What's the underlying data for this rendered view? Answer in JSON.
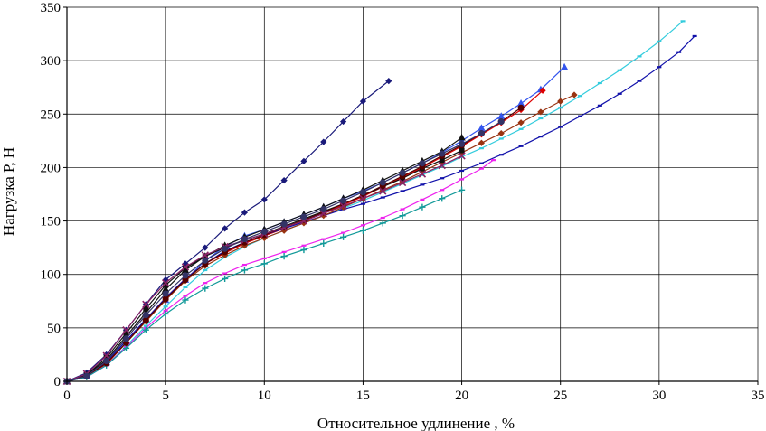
{
  "chart_data": {
    "type": "line",
    "title": "",
    "xlabel": "Относительное удлинение  , %",
    "ylabel": "Нагрузка Р, Н",
    "xlim": [
      0,
      35
    ],
    "ylim": [
      0,
      350
    ],
    "xticks": [
      "0",
      "5",
      "10",
      "15",
      "20",
      "25",
      "30",
      "35"
    ],
    "yticks": [
      "0",
      "50",
      "100",
      "150",
      "200",
      "250",
      "300",
      "350"
    ],
    "grid": true,
    "legend": "none",
    "series": [
      {
        "name": "series-1",
        "color": "#1a1a7a",
        "marker": "diamond",
        "x": [
          0,
          1,
          2,
          3,
          4,
          5,
          6,
          7,
          8,
          9,
          10,
          11,
          12,
          13,
          14,
          15,
          16.3
        ],
        "y": [
          0,
          8,
          25,
          48,
          72,
          95,
          110,
          125,
          143,
          158,
          170,
          188,
          206,
          224,
          243,
          262,
          281
        ]
      },
      {
        "name": "series-2",
        "color": "#3355ee",
        "marker": "triangle",
        "x": [
          0,
          1,
          2,
          3,
          4,
          5,
          6,
          7,
          8,
          9,
          10,
          11,
          12,
          13,
          14,
          15,
          16,
          17,
          18,
          19,
          20,
          21,
          22,
          23,
          24,
          25.2
        ],
        "y": [
          0,
          5,
          18,
          38,
          58,
          76,
          95,
          113,
          126,
          136,
          142,
          149,
          156,
          163,
          171,
          178,
          186,
          195,
          204,
          214,
          225,
          237,
          248,
          260,
          273,
          294
        ]
      },
      {
        "name": "series-3",
        "color": "#dd0000",
        "marker": "diamond",
        "x": [
          0,
          1,
          2,
          3,
          4,
          5,
          6,
          7,
          8,
          9,
          10,
          11,
          12,
          13,
          14,
          15,
          16,
          17,
          18,
          19,
          20,
          21,
          22,
          23,
          24.1
        ],
        "y": [
          0,
          4,
          16,
          36,
          58,
          78,
          96,
          110,
          120,
          129,
          136,
          143,
          150,
          157,
          165,
          173,
          182,
          191,
          200,
          210,
          220,
          231,
          242,
          254,
          272
        ]
      },
      {
        "name": "series-4",
        "color": "#33ccdd",
        "marker": "dash",
        "x": [
          0,
          1,
          2,
          3,
          4,
          5,
          6,
          7,
          8,
          9,
          10,
          11,
          12,
          13,
          14,
          15,
          16,
          17,
          18,
          19,
          20,
          21,
          22,
          23,
          24,
          25,
          26,
          27,
          28,
          29,
          30,
          31.2
        ],
        "y": [
          0,
          4,
          15,
          33,
          52,
          70,
          88,
          104,
          116,
          126,
          134,
          141,
          148,
          155,
          162,
          169,
          177,
          185,
          193,
          201,
          210,
          218,
          227,
          236,
          246,
          256,
          267,
          279,
          291,
          304,
          318,
          337
        ]
      },
      {
        "name": "series-5",
        "color": "#1111aa",
        "marker": "dash",
        "x": [
          0,
          1,
          2,
          3,
          4,
          5,
          6,
          7,
          8,
          9,
          10,
          11,
          12,
          13,
          14,
          15,
          16,
          17,
          18,
          19,
          20,
          21,
          22,
          23,
          24,
          25,
          26,
          27,
          28,
          29,
          30,
          31,
          31.8
        ],
        "y": [
          0,
          5,
          18,
          38,
          58,
          78,
          96,
          110,
          122,
          130,
          137,
          143,
          149,
          155,
          161,
          166,
          172,
          178,
          184,
          190,
          197,
          204,
          212,
          220,
          229,
          238,
          248,
          258,
          269,
          281,
          294,
          308,
          323
        ]
      },
      {
        "name": "series-6",
        "color": "#ee22ee",
        "marker": "dash",
        "x": [
          0,
          1,
          2,
          3,
          4,
          5,
          6,
          7,
          8,
          9,
          10,
          11,
          12,
          13,
          14,
          15,
          16,
          17,
          18,
          19,
          20,
          21,
          21.6
        ],
        "y": [
          0,
          4,
          15,
          32,
          50,
          66,
          80,
          92,
          101,
          109,
          115,
          121,
          127,
          133,
          139,
          146,
          153,
          161,
          170,
          179,
          189,
          199,
          207
        ]
      },
      {
        "name": "series-7",
        "color": "#119999",
        "marker": "plus",
        "x": [
          0,
          1,
          2,
          3,
          4,
          5,
          6,
          7,
          8,
          9,
          10,
          11,
          12,
          13,
          14,
          15,
          16,
          17,
          18,
          19,
          20
        ],
        "y": [
          0,
          4,
          15,
          31,
          48,
          63,
          76,
          87,
          96,
          104,
          110,
          117,
          123,
          129,
          135,
          141,
          148,
          155,
          163,
          171,
          179
        ]
      },
      {
        "name": "series-8",
        "color": "#993311",
        "marker": "diamond",
        "x": [
          0,
          1,
          2,
          3,
          4,
          5,
          6,
          7,
          8,
          9,
          10,
          11,
          12,
          13,
          14,
          15,
          16,
          17,
          18,
          19,
          20,
          21,
          22,
          23,
          24,
          25,
          25.7
        ],
        "y": [
          0,
          5,
          17,
          36,
          56,
          76,
          94,
          108,
          118,
          127,
          134,
          141,
          148,
          155,
          163,
          171,
          179,
          187,
          196,
          205,
          214,
          223,
          232,
          242,
          252,
          262,
          268
        ]
      },
      {
        "name": "series-9",
        "color": "#111111",
        "marker": "triangle",
        "x": [
          0,
          1,
          2,
          3,
          4,
          5,
          6,
          7,
          8,
          9,
          10,
          11,
          12,
          13,
          14,
          15,
          16,
          17,
          18,
          19,
          20
        ],
        "y": [
          0,
          6,
          20,
          42,
          64,
          86,
          104,
          117,
          127,
          135,
          142,
          149,
          156,
          163,
          171,
          179,
          188,
          197,
          206,
          215,
          228
        ]
      },
      {
        "name": "series-10",
        "color": "#111111",
        "marker": "square",
        "x": [
          0,
          1,
          2,
          3,
          4,
          5,
          6,
          7,
          8,
          9,
          10,
          11,
          12,
          13,
          14,
          15,
          16,
          17,
          18,
          19,
          20
        ],
        "y": [
          0,
          6,
          22,
          45,
          68,
          90,
          106,
          117,
          125,
          132,
          138,
          145,
          152,
          159,
          166,
          174,
          182,
          190,
          199,
          207,
          216
        ]
      },
      {
        "name": "series-11",
        "color": "#550000",
        "marker": "circle",
        "x": [
          0,
          1,
          2,
          3,
          4,
          5,
          6,
          7,
          8,
          9,
          10,
          11,
          12,
          13,
          14,
          15,
          16,
          17,
          18,
          19,
          20,
          21,
          22,
          23
        ],
        "y": [
          0,
          5,
          17,
          36,
          57,
          77,
          95,
          110,
          121,
          130,
          137,
          144,
          151,
          158,
          166,
          174,
          183,
          192,
          201,
          211,
          221,
          232,
          243,
          256
        ]
      },
      {
        "name": "series-12",
        "color": "#882266",
        "marker": "x",
        "x": [
          0,
          1,
          2,
          3,
          4,
          5,
          6,
          7,
          8,
          9,
          10,
          11,
          12,
          13,
          14,
          15,
          16,
          17,
          18,
          19,
          20
        ],
        "y": [
          0,
          7,
          24,
          48,
          72,
          92,
          107,
          118,
          126,
          132,
          138,
          144,
          150,
          157,
          164,
          171,
          178,
          186,
          194,
          202,
          211
        ]
      },
      {
        "name": "series-13",
        "color": "#333366",
        "marker": "circle",
        "x": [
          0,
          1,
          2,
          3,
          4,
          5,
          6,
          7,
          8,
          9,
          10,
          11,
          12,
          13,
          14,
          15,
          16,
          17,
          18,
          19,
          20,
          21,
          22
        ],
        "y": [
          0,
          5,
          19,
          40,
          62,
          82,
          99,
          113,
          124,
          133,
          140,
          147,
          154,
          161,
          169,
          177,
          186,
          195,
          204,
          213,
          222,
          232,
          243
        ]
      }
    ]
  }
}
